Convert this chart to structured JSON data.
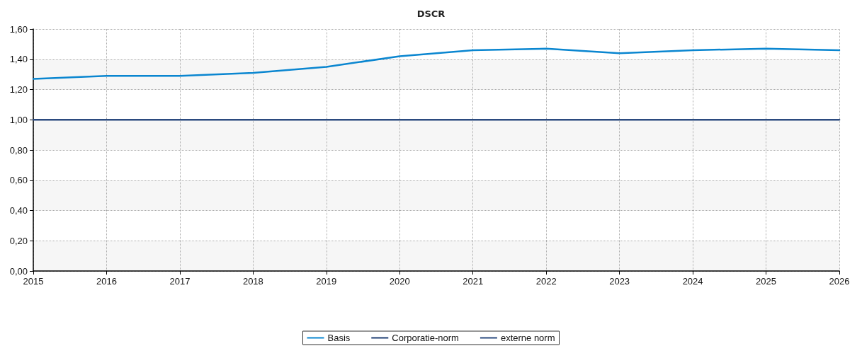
{
  "chart_data": {
    "type": "line",
    "title": "DSCR",
    "x": [
      2015,
      2016,
      2017,
      2018,
      2019,
      2020,
      2021,
      2022,
      2023,
      2024,
      2025,
      2026
    ],
    "series": [
      {
        "name": "Basis",
        "color": "#0a86d0",
        "line_style": "solid",
        "values": [
          1.27,
          1.29,
          1.29,
          1.31,
          1.35,
          1.42,
          1.46,
          1.47,
          1.44,
          1.46,
          1.47,
          1.46
        ]
      },
      {
        "name": "Corporatie-norm",
        "color": "#1f3f73",
        "line_style": "dashed",
        "values": [
          null,
          null,
          null,
          null,
          null,
          null,
          null,
          null,
          null,
          null,
          null,
          null
        ]
      },
      {
        "name": "externe norm",
        "color": "#2b4a7f",
        "line_style": "solid",
        "values": [
          1.0,
          1.0,
          1.0,
          1.0,
          1.0,
          1.0,
          1.0,
          1.0,
          1.0,
          1.0,
          1.0,
          1.0
        ]
      }
    ],
    "xlim": [
      2015,
      2026
    ],
    "xticks": [
      2015,
      2016,
      2017,
      2018,
      2019,
      2020,
      2021,
      2022,
      2023,
      2024,
      2025,
      2026
    ],
    "ylim": [
      0,
      1.6
    ],
    "yticks": [
      {
        "value": 0,
        "label": "0,00"
      },
      {
        "value": 0.2,
        "label": "0,20"
      },
      {
        "value": 0.4,
        "label": "0,40"
      },
      {
        "value": 0.6,
        "label": "0,60"
      },
      {
        "value": 0.8,
        "label": "0,80"
      },
      {
        "value": 1.0,
        "label": "1,00"
      },
      {
        "value": 1.2,
        "label": "1,20"
      },
      {
        "value": 1.4,
        "label": "1,40"
      },
      {
        "value": 1.6,
        "label": "1,60"
      }
    ],
    "grid": true,
    "legend": "bottom",
    "marker": "none"
  }
}
